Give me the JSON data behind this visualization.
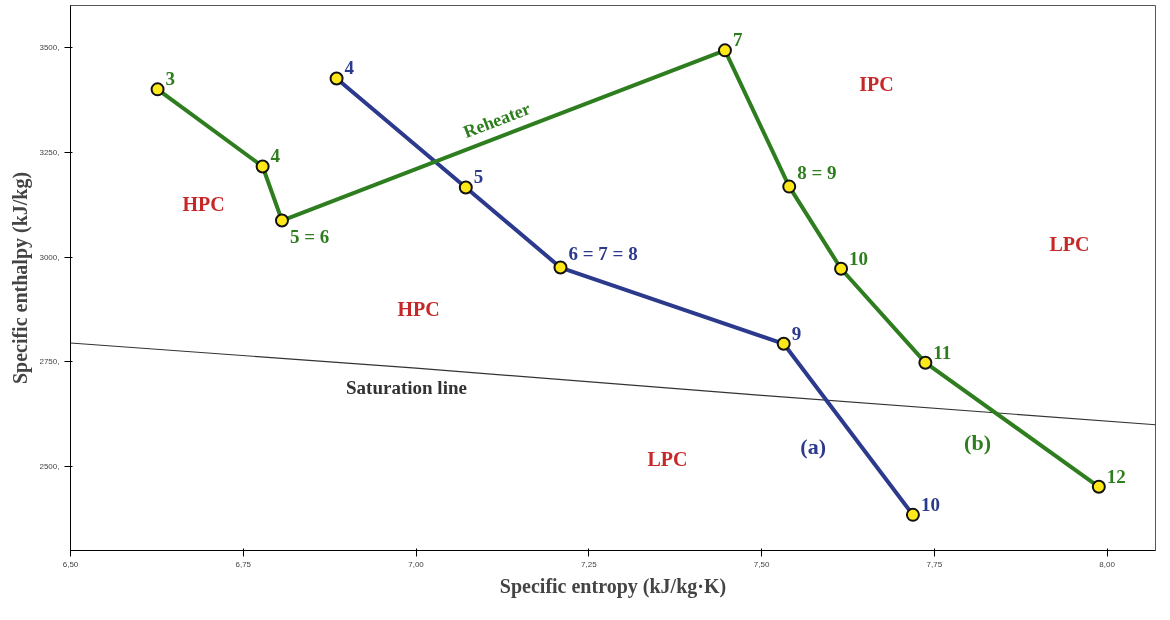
{
  "chart_data": {
    "type": "line",
    "xlabel": "Specific entropy (kJ/kg·K)",
    "ylabel": "Specific enthalpy (kJ/kg)",
    "xlim": [
      6.5,
      8.07
    ],
    "ylim": [
      2300,
      3600
    ],
    "xticks": [
      {
        "value": 6.5,
        "label": "6,50"
      },
      {
        "value": 6.75,
        "label": "6,75"
      },
      {
        "value": 7.0,
        "label": "7,00"
      },
      {
        "value": 7.25,
        "label": "7,25"
      },
      {
        "value": 7.5,
        "label": "7,50"
      },
      {
        "value": 7.75,
        "label": "7,75"
      },
      {
        "value": 8.0,
        "label": "8,00"
      }
    ],
    "yticks": [
      {
        "value": 2500,
        "label": "2500,"
      },
      {
        "value": 2750,
        "label": "2750,"
      },
      {
        "value": 3000,
        "label": "3000,"
      },
      {
        "value": 3250,
        "label": "3250,"
      },
      {
        "value": 3500,
        "label": "3500,"
      }
    ],
    "grid": false,
    "marker": "circle",
    "line_style": "solid",
    "series": [
      {
        "name": "Saturation line",
        "color": "#333333",
        "type": "line",
        "marker": "none",
        "x": [
          6.5,
          7.0,
          7.5,
          8.07
        ],
        "values": [
          2795,
          2735,
          2670,
          2600
        ]
      },
      {
        "name": "(a)",
        "color": "#2b3a8c",
        "x": [
          6.885,
          7.072,
          7.209,
          7.532,
          7.719
        ],
        "values": [
          3426,
          3166,
          2975,
          2793,
          2385
        ]
      },
      {
        "name": "(b)",
        "color": "#2e7d1e",
        "x": [
          6.626,
          6.778,
          6.806,
          7.447,
          7.54,
          7.615,
          7.737,
          7.988
        ],
        "values": [
          3400,
          3216,
          3087,
          3493,
          3168,
          2972,
          2748,
          2452
        ]
      }
    ],
    "annotations": [
      {
        "text": "Reheater",
        "x": 7.1265,
        "y": 3290
      },
      {
        "text": "4",
        "x": 6.885,
        "y": 3426
      },
      {
        "text": "5",
        "x": 7.072,
        "y": 3166
      },
      {
        "text": "6 = 7 = 8",
        "x": 7.209,
        "y": 2975
      },
      {
        "text": "9",
        "x": 7.532,
        "y": 2793
      },
      {
        "text": "10",
        "x": 7.719,
        "y": 2385
      },
      {
        "text": "3",
        "x": 6.626,
        "y": 3400
      },
      {
        "text": "4",
        "x": 6.778,
        "y": 3216
      },
      {
        "text": "5 = 6",
        "x": 6.806,
        "y": 3087
      },
      {
        "text": "7",
        "x": 7.447,
        "y": 3493
      },
      {
        "text": "8 = 9",
        "x": 7.54,
        "y": 3168
      },
      {
        "text": "10",
        "x": 7.615,
        "y": 2972
      },
      {
        "text": "11",
        "x": 7.737,
        "y": 2748
      },
      {
        "text": "12",
        "x": 7.988,
        "y": 2452
      },
      "HPC",
      "HPC",
      "LPC",
      "IPC",
      "LPC"
    ]
  }
}
